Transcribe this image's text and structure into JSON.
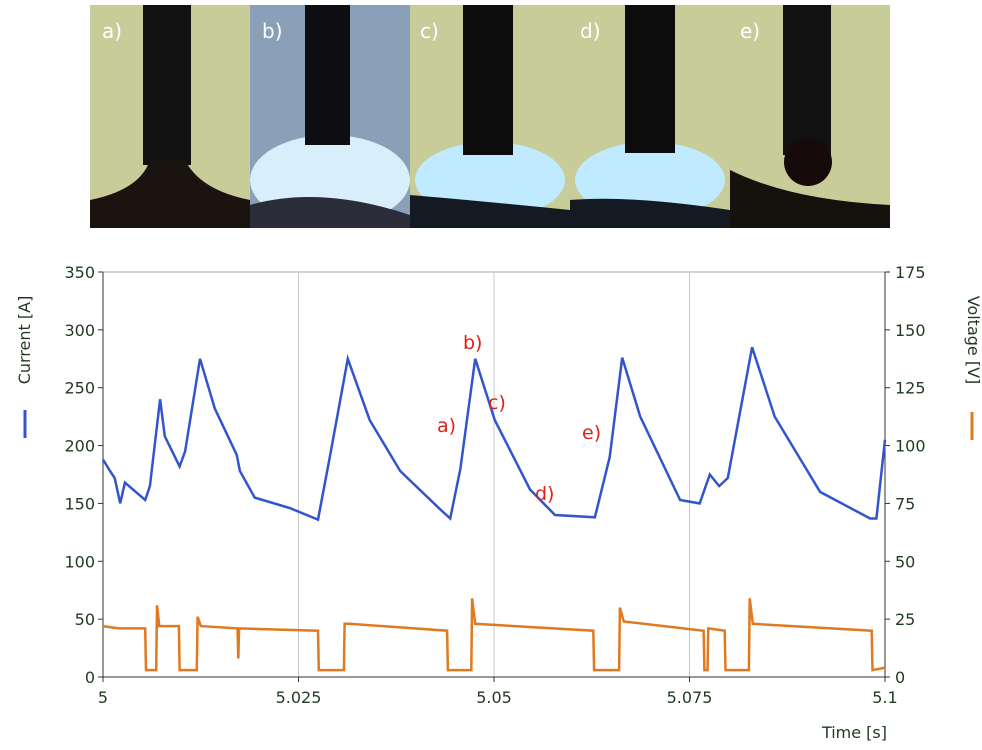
{
  "photo_labels": [
    "a)",
    "b)",
    "c)",
    "d)",
    "e)"
  ],
  "chart_data": {
    "type": "line",
    "xlabel": "Time [s]",
    "ylabel": "Current [A]",
    "y2label": "Voltage [V]",
    "xlim": [
      5,
      5.1
    ],
    "xticks": [
      5,
      5.025,
      5.05,
      5.075,
      5.1
    ],
    "ylim": [
      0,
      350
    ],
    "yticks": [
      0,
      50,
      100,
      150,
      200,
      250,
      300,
      350
    ],
    "y2lim": [
      0,
      175
    ],
    "y2ticks": [
      0,
      25,
      50,
      75,
      100,
      125,
      150,
      175
    ],
    "grid": true,
    "annotations": [
      "a)",
      "b)",
      "c)",
      "d)",
      "e)"
    ],
    "series": [
      {
        "name": "Current [A]",
        "color": "#3355cc",
        "axis": "y",
        "x": [
          5.0,
          5.0009,
          5.0015,
          5.0022,
          5.0028,
          5.0054,
          5.006,
          5.0073,
          5.0079,
          5.0098,
          5.0105,
          5.0124,
          5.0143,
          5.0171,
          5.0175,
          5.0194,
          5.0239,
          5.0275,
          5.029,
          5.0313,
          5.0341,
          5.038,
          5.0431,
          5.0444,
          5.0457,
          5.0476,
          5.0501,
          5.0546,
          5.0578,
          5.0629,
          5.0648,
          5.0664,
          5.0687,
          5.0738,
          5.0763,
          5.0776,
          5.0788,
          5.0799,
          5.083,
          5.0859,
          5.0917,
          5.0981,
          5.0989,
          5.1
        ],
        "values": [
          188,
          178,
          172,
          150,
          168,
          153,
          165,
          240,
          208,
          182,
          195,
          275,
          232,
          192,
          178,
          155,
          146,
          136,
          190,
          275,
          222,
          178,
          145,
          137,
          180,
          275,
          222,
          162,
          140,
          138,
          190,
          276,
          225,
          153,
          150,
          175,
          165,
          172,
          285,
          225,
          160,
          137,
          137,
          205
        ]
      },
      {
        "name": "Voltage [V]",
        "color": "#e07a20",
        "axis": "y2",
        "x": [
          5.0,
          5.002,
          5.0054,
          5.0055,
          5.0068,
          5.0069,
          5.0072,
          5.0097,
          5.0098,
          5.012,
          5.0121,
          5.0125,
          5.0172,
          5.0173,
          5.0174,
          5.0275,
          5.0276,
          5.0308,
          5.0309,
          5.0315,
          5.044,
          5.0441,
          5.0471,
          5.0472,
          5.0476,
          5.0627,
          5.0628,
          5.066,
          5.0661,
          5.0666,
          5.0768,
          5.0769,
          5.0773,
          5.0774,
          5.0795,
          5.0796,
          5.0826,
          5.0827,
          5.0831,
          5.0983,
          5.0984,
          5.1
        ],
        "values": [
          22,
          21,
          21,
          3,
          3,
          31,
          22,
          22,
          3,
          3,
          26,
          22,
          21,
          8,
          21,
          20,
          3,
          3,
          23,
          23,
          20,
          3,
          3,
          34,
          23,
          20,
          3,
          3,
          30,
          24,
          20,
          3,
          3,
          21,
          20,
          3,
          3,
          34,
          23,
          20,
          3,
          4
        ]
      }
    ]
  }
}
